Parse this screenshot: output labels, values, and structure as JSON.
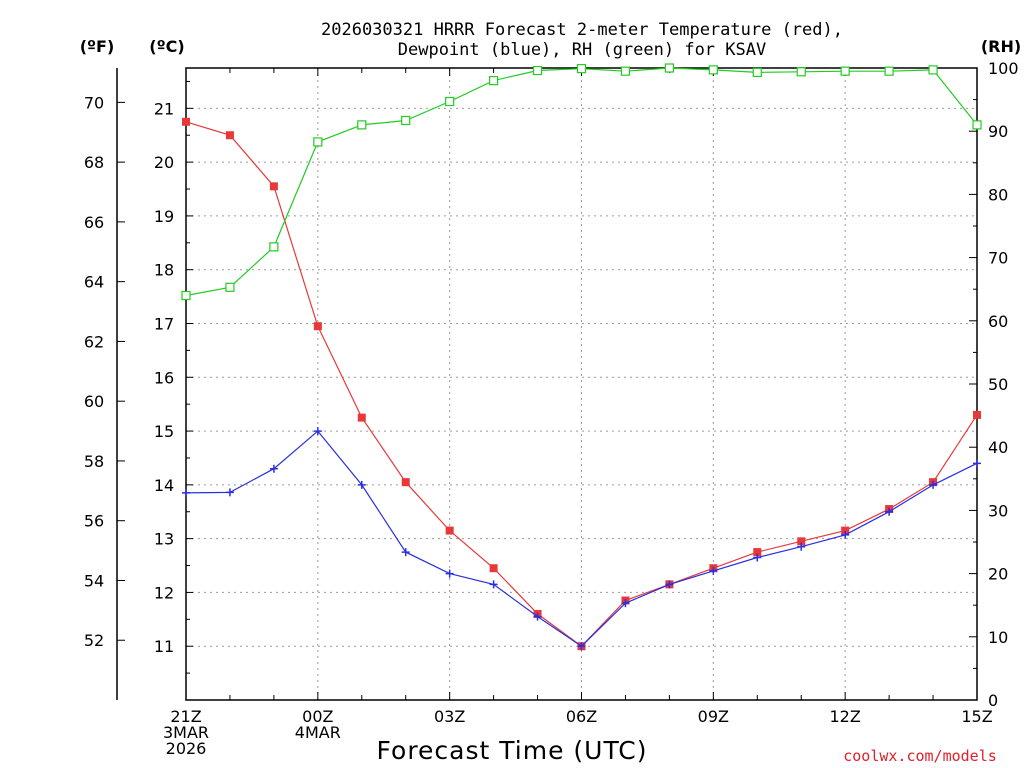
{
  "chart_data": {
    "type": "line",
    "title_line1": "2026030321 HRRR Forecast 2-meter Temperature (red),",
    "title_line2": "Dewpoint (blue), RH (green) for KSAV",
    "xlabel": "Forecast Time (UTC)",
    "credit": "coolwx.com/models",
    "units": {
      "fahrenheit": "(ºF)",
      "celsius": "(ºC)",
      "rh": "(RH)"
    },
    "x_hours": [
      0,
      1,
      2,
      3,
      4,
      5,
      6,
      7,
      8,
      9,
      10,
      11,
      12,
      13,
      14,
      15,
      16,
      17,
      18
    ],
    "x_tick_labels": [
      {
        "hour": 0,
        "lines": [
          "21Z",
          "3MAR",
          "2026"
        ]
      },
      {
        "hour": 3,
        "lines": [
          "00Z",
          "4MAR"
        ]
      },
      {
        "hour": 6,
        "lines": [
          "03Z"
        ]
      },
      {
        "hour": 9,
        "lines": [
          "06Z"
        ]
      },
      {
        "hour": 12,
        "lines": [
          "09Z"
        ]
      },
      {
        "hour": 15,
        "lines": [
          "12Z"
        ]
      },
      {
        "hour": 18,
        "lines": [
          "15Z"
        ]
      }
    ],
    "celsius_axis": {
      "ylim": [
        10.0,
        21.75
      ],
      "ticks": [
        11,
        12,
        13,
        14,
        15,
        16,
        17,
        18,
        19,
        20,
        21
      ]
    },
    "fahrenheit_ticks": [
      52,
      54,
      56,
      58,
      60,
      62,
      64,
      66,
      68,
      70
    ],
    "rh_axis": {
      "ylim": [
        0,
        100
      ],
      "ticks": [
        0,
        10,
        20,
        30,
        40,
        50,
        60,
        70,
        80,
        90,
        100
      ]
    },
    "grid": true,
    "series": [
      {
        "name": "Temperature",
        "axis": "celsius",
        "color": "#e8383a",
        "marker": "filled-square",
        "values": [
          20.75,
          20.5,
          19.55,
          16.95,
          15.25,
          14.05,
          13.15,
          12.45,
          11.6,
          11.0,
          11.85,
          12.15,
          12.45,
          12.75,
          12.95,
          13.15,
          13.55,
          14.05,
          15.3
        ]
      },
      {
        "name": "Dewpoint",
        "axis": "celsius",
        "color": "#2830e0",
        "marker": "plus",
        "values": [
          13.85,
          13.86,
          14.3,
          15.0,
          14.0,
          12.75,
          12.35,
          12.15,
          11.55,
          11.0,
          11.8,
          12.15,
          12.4,
          12.65,
          12.85,
          13.07,
          13.5,
          14.0,
          14.4
        ]
      },
      {
        "name": "RH",
        "axis": "rh",
        "color": "#22cc22",
        "marker": "open-square",
        "values": [
          64.0,
          65.3,
          71.7,
          88.3,
          91.0,
          91.7,
          94.7,
          98.0,
          99.6,
          99.9,
          99.5,
          100.0,
          99.7,
          99.3,
          99.4,
          99.5,
          99.5,
          99.7,
          91.0
        ]
      }
    ]
  }
}
